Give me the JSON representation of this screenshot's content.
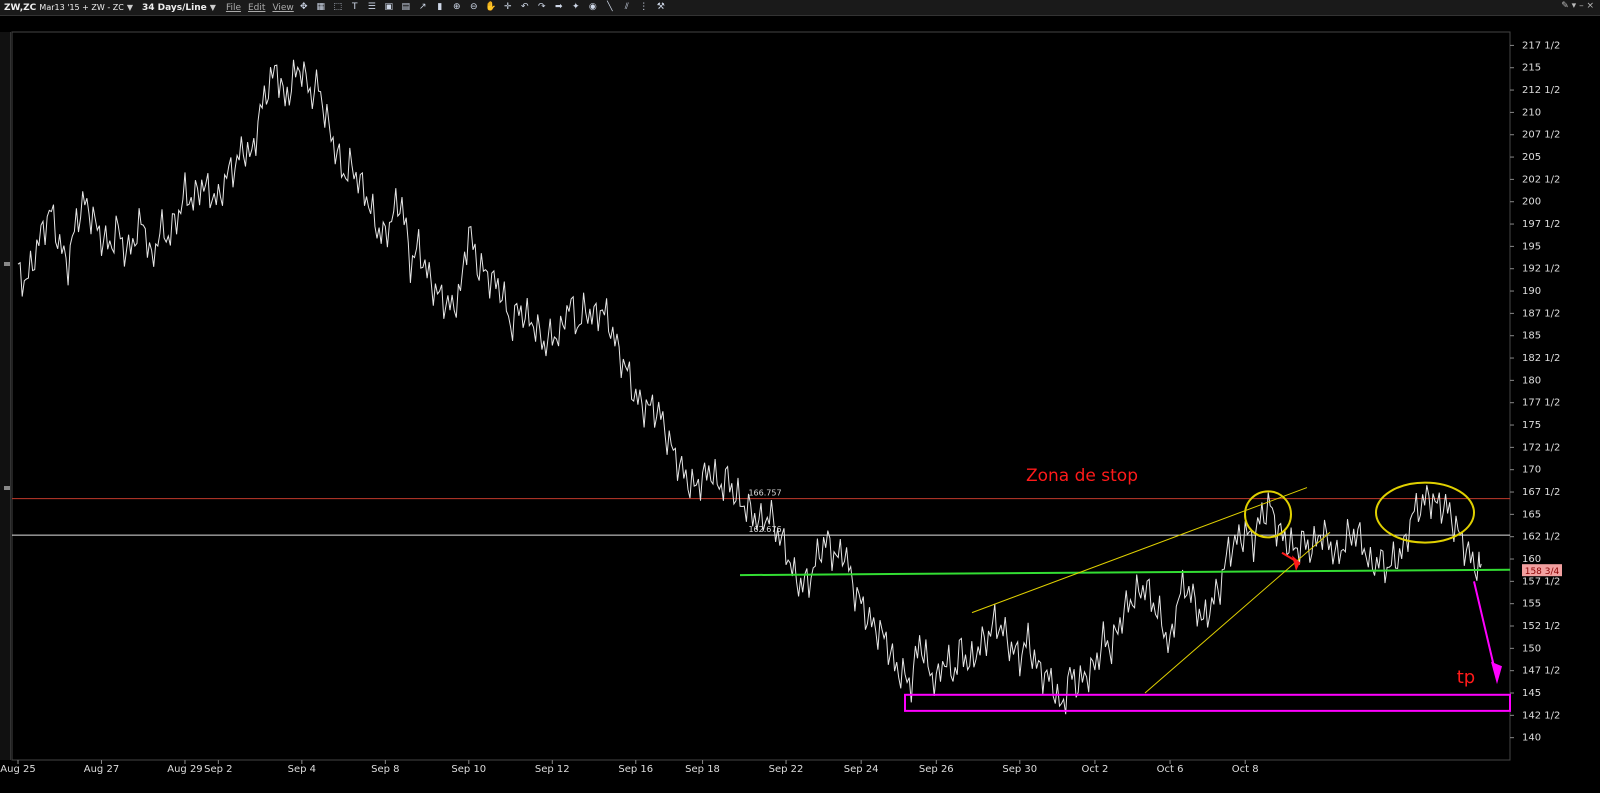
{
  "toolbar": {
    "symbol": "ZW,ZC",
    "symbol_detail": "Mar13 '15 + ZW - ZC",
    "period": "34 Days/Line",
    "menu": [
      "File",
      "Edit",
      "View"
    ],
    "icons": [
      "crosshair-icon",
      "grid-icon",
      "zoom-box-icon",
      "text-icon",
      "properties-icon",
      "image-icon",
      "layout-icon",
      "draw-line-icon",
      "bar-chart-icon",
      "zoom-in-icon",
      "zoom-out-icon",
      "hand-icon",
      "crosshair-cursor-icon",
      "undo-icon",
      "redo-icon",
      "arrow-icon",
      "wand-icon",
      "palette-icon",
      "line-tool-icon",
      "lines-tool-icon",
      "bars-tool-icon",
      "wrench-icon"
    ]
  },
  "colors": {
    "background": "#000000",
    "price_line": "#e6e6e6",
    "stop_line": "#c0392b",
    "ref_line": "#e0e0e0",
    "support_line": "#33dd33",
    "trend_line": "#e0d000",
    "annotation_red": "#ff1a1a",
    "annotation_magenta": "#ff00ff",
    "last_price_bg": "#f2a0a0"
  },
  "chart_data": {
    "type": "line",
    "title": "",
    "ylim": [
      137.5,
      219
    ],
    "y_ticks": [
      "217 1/2",
      "215",
      "212 1/2",
      "210",
      "207 1/2",
      "205",
      "202 1/2",
      "200",
      "197 1/2",
      "195",
      "192 1/2",
      "190",
      "187 1/2",
      "185",
      "182 1/2",
      "180",
      "177 1/2",
      "175",
      "172 1/2",
      "170",
      "167 1/2",
      "165",
      "162 1/2",
      "160",
      "157 1/2",
      "155",
      "152 1/2",
      "150",
      "147 1/2",
      "145",
      "142 1/2",
      "140"
    ],
    "x_ticks": [
      "Aug 25",
      "Aug 27",
      "Aug 29",
      "Sep 2",
      "Sep 4",
      "Sep 8",
      "Sep 10",
      "Sep 12",
      "Sep 16",
      "Sep 18",
      "Sep 22",
      "Sep 24",
      "Sep 26",
      "Sep 30",
      "Oct 2",
      "Oct 6",
      "Oct 8"
    ],
    "series": [
      {
        "x": [
          0,
          1,
          2,
          3,
          4,
          5,
          6,
          7,
          8,
          9,
          10,
          11,
          12,
          13,
          14,
          15,
          16,
          17,
          18,
          19,
          20,
          21,
          22,
          23,
          24,
          25,
          26,
          27,
          28,
          29,
          30,
          31,
          32,
          33,
          34,
          35,
          36,
          37,
          38,
          39,
          40,
          41,
          42,
          43,
          44,
          45,
          46,
          47,
          48,
          49,
          50,
          51,
          52,
          53,
          54,
          55,
          56,
          57,
          58,
          59,
          60,
          61,
          62,
          63,
          64,
          65,
          66,
          67,
          68,
          69,
          70,
          71,
          72,
          73,
          74,
          75,
          76,
          77,
          78,
          79,
          80,
          81,
          82,
          83,
          84,
          85,
          86,
          87,
          88,
          89,
          90,
          91,
          92,
          93,
          94,
          95,
          96,
          97,
          98,
          99,
          100,
          101,
          102,
          103,
          104,
          105,
          106,
          107,
          108,
          109,
          110,
          111,
          112,
          113,
          114,
          115,
          116,
          117,
          118,
          119,
          120,
          121,
          122,
          123,
          124,
          125,
          126,
          127,
          128,
          129,
          130,
          131,
          132,
          133,
          134,
          135,
          136,
          137,
          138,
          139,
          140,
          141,
          142,
          143,
          144,
          145,
          146,
          147,
          148,
          149,
          150,
          151,
          152,
          153,
          154,
          155,
          156,
          157,
          158,
          159,
          160,
          161,
          162,
          163,
          164,
          165,
          166,
          167,
          168,
          169,
          170,
          171,
          172,
          173,
          174,
          175
        ],
        "y": [
          192,
          191,
          194,
          197,
          199,
          195,
          193,
          198,
          200,
          198,
          196,
          195,
          197,
          194,
          196,
          198,
          193,
          197,
          196,
          198,
          201,
          200,
          202,
          201,
          200,
          203,
          204,
          206,
          205,
          210,
          213,
          215,
          211,
          214,
          215,
          212,
          213,
          209,
          206,
          203,
          204,
          202,
          200,
          197,
          196,
          199,
          200,
          193,
          195,
          192,
          190,
          189,
          188,
          190,
          197,
          193,
          192,
          191,
          190,
          186,
          188,
          187,
          186,
          184,
          185,
          185,
          189,
          186,
          188,
          187,
          188,
          186,
          183,
          181,
          178,
          177,
          177,
          176,
          173,
          171,
          169,
          168,
          169,
          170,
          168,
          169,
          167,
          166,
          165,
          164,
          165,
          163,
          161,
          158,
          157,
          158,
          161,
          162,
          160,
          161,
          157,
          155,
          153,
          152,
          151,
          148,
          147,
          146,
          151,
          148,
          146,
          149,
          147,
          150,
          148,
          150,
          151,
          153,
          152,
          150,
          149,
          151,
          148,
          147,
          146,
          143,
          147,
          146,
          147,
          148,
          151,
          150,
          153,
          155,
          156,
          157,
          155,
          153,
          150,
          156,
          157,
          155,
          153,
          155,
          157,
          161,
          162,
          163,
          162,
          165,
          166,
          163,
          162,
          161,
          162,
          161,
          163,
          162,
          160,
          162,
          163,
          162,
          159,
          160,
          159,
          160,
          161,
          165,
          166,
          167,
          166,
          166,
          164,
          162,
          160,
          159
        ]
      }
    ],
    "x_tick_positions": [
      0,
      10,
      20,
      24,
      34,
      44,
      54,
      64,
      74,
      82,
      92,
      101,
      110,
      120,
      129,
      138,
      147
    ],
    "horizontal_lines": [
      {
        "name": "stop",
        "value": 166.757,
        "label": "166.757"
      },
      {
        "name": "reference",
        "value": 162.676,
        "label": "162.676"
      }
    ],
    "last_price_label": "158 3/4",
    "annotations": [
      "Zona de stop",
      "tp"
    ]
  }
}
